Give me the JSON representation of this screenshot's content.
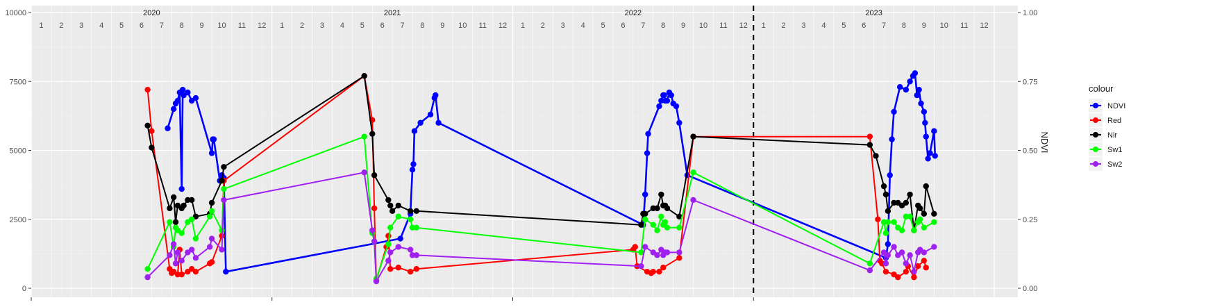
{
  "chart_data": {
    "type": "line",
    "y_label_right": "NDVI",
    "y_left": {
      "range": [
        0,
        10000
      ],
      "ticks": [
        0,
        2500,
        5000,
        7500,
        10000
      ],
      "tick_labels": [
        "0",
        "2500",
        "5000",
        "7500",
        "10000"
      ]
    },
    "y_right": {
      "range": [
        0,
        1
      ],
      "ticks": [
        0,
        0.25,
        0.5,
        0.75,
        1
      ],
      "tick_labels": [
        "0.00",
        "0.25",
        "0.50",
        "0.75",
        "1.00"
      ]
    },
    "x_range_months": [
      0,
      48
    ],
    "years": [
      {
        "label": "2020",
        "month_pos": 6
      },
      {
        "label": "2021",
        "month_pos": 18
      },
      {
        "label": "2022",
        "month_pos": 30
      },
      {
        "label": "2023",
        "month_pos": 42
      }
    ],
    "month_labels": [
      "1",
      "2",
      "3",
      "4",
      "5",
      "6",
      "7",
      "8",
      "9",
      "10",
      "11",
      "12"
    ],
    "dashed_line_month": 36,
    "legend": {
      "title": "colour",
      "placement": "right"
    },
    "series": [
      {
        "name": "NDVI",
        "color": "#0000ff",
        "axis": "right",
        "points": [
          [
            6.8,
            0.58
          ],
          [
            7.1,
            0.65
          ],
          [
            7.2,
            0.67
          ],
          [
            7.3,
            0.68
          ],
          [
            7.4,
            0.71
          ],
          [
            7.5,
            0.36
          ],
          [
            7.55,
            0.72
          ],
          [
            7.6,
            0.7
          ],
          [
            7.8,
            0.71
          ],
          [
            8,
            0.68
          ],
          [
            8.2,
            0.69
          ],
          [
            9,
            0.49
          ],
          [
            9.05,
            0.54
          ],
          [
            9.1,
            0.54
          ],
          [
            9.4,
            0.39
          ],
          [
            9.5,
            0.41
          ],
          [
            9.6,
            0.4
          ],
          [
            9.7,
            0.06
          ],
          [
            18.4,
            0.18
          ],
          [
            18.9,
            0.27
          ],
          [
            19.0,
            0.43
          ],
          [
            19.05,
            0.45
          ],
          [
            19.1,
            0.57
          ],
          [
            19.4,
            0.6
          ],
          [
            19.9,
            0.63
          ],
          [
            20.1,
            0.69
          ],
          [
            20.15,
            0.7
          ],
          [
            20.3,
            0.6
          ],
          [
            30.5,
            0.23
          ],
          [
            30.6,
            0.34
          ],
          [
            30.7,
            0.49
          ],
          [
            30.75,
            0.56
          ],
          [
            31.3,
            0.66
          ],
          [
            31.4,
            0.68
          ],
          [
            31.5,
            0.7
          ],
          [
            31.55,
            0.7
          ],
          [
            31.6,
            0.68
          ],
          [
            31.7,
            0.68
          ],
          [
            31.8,
            0.71
          ],
          [
            31.9,
            0.7
          ],
          [
            32.0,
            0.67
          ],
          [
            32.15,
            0.66
          ],
          [
            32.3,
            0.6
          ],
          [
            32.7,
            0.41
          ],
          [
            42.6,
            0.11
          ],
          [
            42.7,
            0.16
          ],
          [
            42.8,
            0.41
          ],
          [
            42.9,
            0.54
          ],
          [
            43.0,
            0.64
          ],
          [
            43.3,
            0.73
          ],
          [
            43.6,
            0.72
          ],
          [
            43.8,
            0.75
          ],
          [
            43.95,
            0.77
          ],
          [
            44.05,
            0.78
          ],
          [
            44.15,
            0.7
          ],
          [
            44.25,
            0.72
          ],
          [
            44.35,
            0.67
          ],
          [
            44.5,
            0.64
          ],
          [
            44.55,
            0.6
          ],
          [
            44.6,
            0.55
          ],
          [
            44.7,
            0.47
          ],
          [
            44.8,
            0.49
          ],
          [
            45.0,
            0.57
          ],
          [
            45.05,
            0.48
          ]
        ]
      },
      {
        "name": "Red",
        "color": "#ff0000",
        "axis": "left",
        "points": [
          [
            5.8,
            7200
          ],
          [
            6.0,
            5700
          ],
          [
            6.9,
            700
          ],
          [
            7.0,
            550
          ],
          [
            7.1,
            600
          ],
          [
            7.3,
            500
          ],
          [
            7.4,
            1400
          ],
          [
            7.5,
            500
          ],
          [
            7.8,
            600
          ],
          [
            8.0,
            700
          ],
          [
            8.2,
            600
          ],
          [
            8.9,
            900
          ],
          [
            9.0,
            950
          ],
          [
            9.5,
            1900
          ],
          [
            9.6,
            3900
          ],
          [
            16.6,
            7700
          ],
          [
            17.0,
            6100
          ],
          [
            17.1,
            2900
          ],
          [
            17.2,
            300
          ],
          [
            17.7,
            1500
          ],
          [
            17.8,
            1900
          ],
          [
            17.9,
            700
          ],
          [
            18.3,
            750
          ],
          [
            18.9,
            600
          ],
          [
            19.2,
            700
          ],
          [
            30.0,
            1400
          ],
          [
            30.1,
            1500
          ],
          [
            30.2,
            800
          ],
          [
            30.7,
            600
          ],
          [
            30.9,
            550
          ],
          [
            31.0,
            600
          ],
          [
            31.3,
            600
          ],
          [
            31.5,
            750
          ],
          [
            32.3,
            1100
          ],
          [
            33.0,
            5500
          ],
          [
            41.8,
            5500
          ],
          [
            42.2,
            2500
          ],
          [
            42.3,
            1000
          ],
          [
            42.4,
            900
          ],
          [
            42.6,
            600
          ],
          [
            43.0,
            500
          ],
          [
            43.2,
            400
          ],
          [
            43.6,
            600
          ],
          [
            43.7,
            800
          ],
          [
            44.0,
            400
          ],
          [
            44.2,
            800
          ],
          [
            44.5,
            1000
          ],
          [
            44.6,
            750
          ]
        ]
      },
      {
        "name": "Nir",
        "color": "#000000",
        "axis": "left",
        "points": [
          [
            5.8,
            5900
          ],
          [
            6.0,
            5100
          ],
          [
            6.9,
            2900
          ],
          [
            7.1,
            3300
          ],
          [
            7.2,
            2400
          ],
          [
            7.3,
            3000
          ],
          [
            7.5,
            2900
          ],
          [
            7.6,
            3000
          ],
          [
            7.8,
            3200
          ],
          [
            8.0,
            3200
          ],
          [
            8.2,
            2600
          ],
          [
            8.9,
            2700
          ],
          [
            9.0,
            3100
          ],
          [
            9.5,
            3900
          ],
          [
            9.6,
            4400
          ],
          [
            16.6,
            7700
          ],
          [
            17.0,
            5600
          ],
          [
            17.1,
            4100
          ],
          [
            17.8,
            3200
          ],
          [
            17.9,
            3000
          ],
          [
            18.0,
            2800
          ],
          [
            18.3,
            3000
          ],
          [
            18.9,
            2800
          ],
          [
            19.2,
            2800
          ],
          [
            30.4,
            2300
          ],
          [
            30.5,
            2700
          ],
          [
            30.6,
            2700
          ],
          [
            31.0,
            2900
          ],
          [
            31.2,
            2900
          ],
          [
            31.4,
            3400
          ],
          [
            31.5,
            3000
          ],
          [
            31.6,
            3000
          ],
          [
            31.7,
            2900
          ],
          [
            32.3,
            2600
          ],
          [
            33.0,
            5500
          ],
          [
            41.8,
            5200
          ],
          [
            42.1,
            4800
          ],
          [
            42.5,
            3700
          ],
          [
            42.6,
            3400
          ],
          [
            42.7,
            2800
          ],
          [
            43.0,
            3100
          ],
          [
            43.2,
            3100
          ],
          [
            43.4,
            3000
          ],
          [
            43.6,
            3100
          ],
          [
            43.8,
            3400
          ],
          [
            44.0,
            2100
          ],
          [
            44.2,
            3000
          ],
          [
            44.3,
            2900
          ],
          [
            44.5,
            2700
          ],
          [
            44.6,
            3700
          ],
          [
            45.0,
            2700
          ]
        ]
      },
      {
        "name": "Sw1",
        "color": "#00ff00",
        "axis": "left",
        "points": [
          [
            5.8,
            700
          ],
          [
            6.9,
            2400
          ],
          [
            7.1,
            1500
          ],
          [
            7.2,
            2200
          ],
          [
            7.3,
            2100
          ],
          [
            7.5,
            2000
          ],
          [
            7.8,
            2400
          ],
          [
            8.0,
            2500
          ],
          [
            8.2,
            1800
          ],
          [
            8.9,
            2600
          ],
          [
            9.0,
            2800
          ],
          [
            9.5,
            2100
          ],
          [
            9.6,
            3600
          ],
          [
            16.6,
            5500
          ],
          [
            17.0,
            2000
          ],
          [
            17.1,
            1700
          ],
          [
            17.2,
            350
          ],
          [
            17.8,
            1600
          ],
          [
            17.9,
            2200
          ],
          [
            18.3,
            2600
          ],
          [
            18.9,
            2500
          ],
          [
            19.0,
            2200
          ],
          [
            19.2,
            2200
          ],
          [
            30.4,
            1300
          ],
          [
            30.6,
            2500
          ],
          [
            31.0,
            2300
          ],
          [
            31.2,
            2100
          ],
          [
            31.4,
            2600
          ],
          [
            31.5,
            2300
          ],
          [
            31.6,
            2400
          ],
          [
            31.7,
            2200
          ],
          [
            32.3,
            2200
          ],
          [
            33.0,
            4200
          ],
          [
            41.8,
            900
          ],
          [
            42.5,
            2400
          ],
          [
            42.6,
            2000
          ],
          [
            42.7,
            2400
          ],
          [
            43.0,
            2400
          ],
          [
            43.2,
            2200
          ],
          [
            43.4,
            2100
          ],
          [
            43.6,
            2600
          ],
          [
            43.8,
            2600
          ],
          [
            44.0,
            2100
          ],
          [
            44.2,
            2400
          ],
          [
            44.3,
            2500
          ],
          [
            44.5,
            2200
          ],
          [
            45.0,
            2400
          ]
        ]
      },
      {
        "name": "Sw2",
        "color": "#a020f0",
        "axis": "left",
        "points": [
          [
            5.8,
            400
          ],
          [
            6.9,
            1200
          ],
          [
            7.1,
            1600
          ],
          [
            7.2,
            900
          ],
          [
            7.3,
            1300
          ],
          [
            7.5,
            1000
          ],
          [
            7.8,
            1300
          ],
          [
            8.0,
            1400
          ],
          [
            8.2,
            1100
          ],
          [
            8.9,
            1500
          ],
          [
            9.0,
            1800
          ],
          [
            9.5,
            1400
          ],
          [
            9.6,
            3200
          ],
          [
            16.6,
            4200
          ],
          [
            17.0,
            2100
          ],
          [
            17.1,
            1700
          ],
          [
            17.2,
            250
          ],
          [
            17.8,
            1000
          ],
          [
            17.9,
            1300
          ],
          [
            18.3,
            1500
          ],
          [
            18.9,
            1400
          ],
          [
            19.0,
            1200
          ],
          [
            19.2,
            1200
          ],
          [
            30.4,
            800
          ],
          [
            30.6,
            1500
          ],
          [
            31.0,
            1300
          ],
          [
            31.2,
            1200
          ],
          [
            31.4,
            1400
          ],
          [
            31.5,
            1200
          ],
          [
            31.6,
            1300
          ],
          [
            31.7,
            1300
          ],
          [
            32.3,
            1300
          ],
          [
            33.0,
            3200
          ],
          [
            41.8,
            650
          ],
          [
            42.5,
            1300
          ],
          [
            42.6,
            900
          ],
          [
            42.7,
            1200
          ],
          [
            43.0,
            1500
          ],
          [
            43.2,
            1200
          ],
          [
            43.4,
            1300
          ],
          [
            43.6,
            900
          ],
          [
            43.8,
            1200
          ],
          [
            44.0,
            600
          ],
          [
            44.2,
            1300
          ],
          [
            44.3,
            1400
          ],
          [
            44.5,
            1300
          ],
          [
            45.0,
            1500
          ]
        ]
      }
    ]
  }
}
